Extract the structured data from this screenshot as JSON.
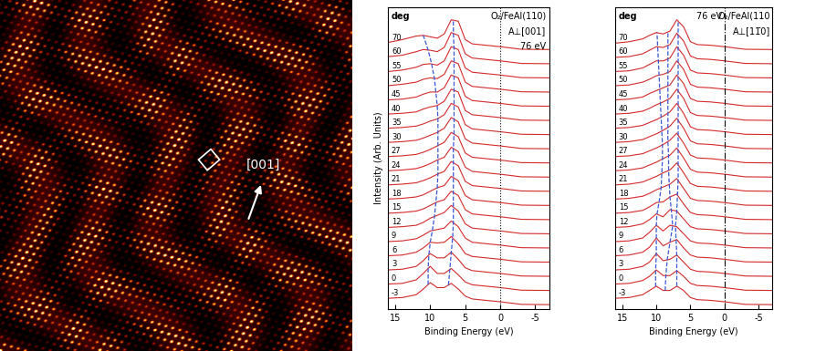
{
  "image": {
    "label": "[001]"
  },
  "chart_data": [
    {
      "type": "line",
      "xlabel": "Binding Energy (eV)",
      "ylabel": "Intensity (Arb. Units)",
      "annotations": [
        "O₂/FeAl(110)",
        "A⊥[001]",
        "76 eV"
      ],
      "series_header": "deg",
      "xlim": [
        16,
        -7
      ],
      "xticks": [
        15,
        10,
        5,
        0,
        -5
      ],
      "ylim": [
        -0.3,
        21
      ],
      "tick_labels": "x",
      "color": "#d42a2a",
      "reference_line": {
        "x": 0,
        "color": "#000000",
        "line_style": "dotted"
      },
      "x": [
        16,
        14,
        12,
        11,
        10,
        9,
        8,
        7,
        6,
        5,
        4,
        2,
        0,
        -3,
        -7
      ],
      "series": [
        {
          "name": "-3",
          "offset": 0,
          "values": [
            0.45,
            0.5,
            0.7,
            1.1,
            1.55,
            1.2,
            1.2,
            1.5,
            1.1,
            0.6,
            0.4,
            0.3,
            0.2,
            0.02,
            0
          ]
        },
        {
          "name": "0",
          "offset": 1,
          "values": [
            0.45,
            0.5,
            0.75,
            1.2,
            1.7,
            1.2,
            1.2,
            1.55,
            1.1,
            0.6,
            0.4,
            0.3,
            0.2,
            0.02,
            0
          ]
        },
        {
          "name": "3",
          "offset": 2,
          "values": [
            0.45,
            0.5,
            0.7,
            1.1,
            1.6,
            1.3,
            1.3,
            1.7,
            1.2,
            0.6,
            0.4,
            0.3,
            0.2,
            0.02,
            0
          ]
        },
        {
          "name": "6",
          "offset": 3,
          "values": [
            0.45,
            0.5,
            0.7,
            1.0,
            1.4,
            1.35,
            1.4,
            1.8,
            1.3,
            0.6,
            0.4,
            0.3,
            0.2,
            0.02,
            0
          ]
        },
        {
          "name": "9",
          "offset": 4,
          "values": [
            0.45,
            0.5,
            0.65,
            0.9,
            1.2,
            1.3,
            1.4,
            1.9,
            1.5,
            0.7,
            0.4,
            0.3,
            0.2,
            0.02,
            0
          ]
        },
        {
          "name": "12",
          "offset": 5,
          "values": [
            0.45,
            0.5,
            0.6,
            0.8,
            1.1,
            1.3,
            1.5,
            2.0,
            1.6,
            0.7,
            0.4,
            0.3,
            0.2,
            0.02,
            0
          ]
        },
        {
          "name": "15",
          "offset": 6,
          "values": [
            0.45,
            0.5,
            0.6,
            0.75,
            1.0,
            1.25,
            1.4,
            2.0,
            1.7,
            0.7,
            0.4,
            0.3,
            0.2,
            0.02,
            0
          ]
        },
        {
          "name": "18",
          "offset": 7,
          "values": [
            0.45,
            0.5,
            0.6,
            0.75,
            1.0,
            1.25,
            1.4,
            2.05,
            1.75,
            0.7,
            0.4,
            0.3,
            0.2,
            0.02,
            0
          ]
        },
        {
          "name": "21",
          "offset": 8,
          "values": [
            0.45,
            0.5,
            0.6,
            0.75,
            0.95,
            1.2,
            1.4,
            2.1,
            1.8,
            0.7,
            0.4,
            0.3,
            0.2,
            0.02,
            0
          ]
        },
        {
          "name": "24",
          "offset": 9,
          "values": [
            0.45,
            0.5,
            0.6,
            0.75,
            0.95,
            1.2,
            1.4,
            2.1,
            1.8,
            0.7,
            0.4,
            0.3,
            0.2,
            0.02,
            0
          ]
        },
        {
          "name": "27",
          "offset": 10,
          "values": [
            0.45,
            0.5,
            0.6,
            0.75,
            0.95,
            1.2,
            1.45,
            2.15,
            1.85,
            0.7,
            0.4,
            0.3,
            0.2,
            0.02,
            0
          ]
        },
        {
          "name": "30",
          "offset": 11,
          "values": [
            0.45,
            0.5,
            0.6,
            0.75,
            0.95,
            1.15,
            1.45,
            2.2,
            1.9,
            0.7,
            0.4,
            0.3,
            0.2,
            0.02,
            0
          ]
        },
        {
          "name": "35",
          "offset": 12,
          "values": [
            0.45,
            0.5,
            0.6,
            0.75,
            0.95,
            1.1,
            1.4,
            2.2,
            1.95,
            0.7,
            0.4,
            0.3,
            0.2,
            0.02,
            0
          ]
        },
        {
          "name": "40",
          "offset": 13,
          "values": [
            0.45,
            0.5,
            0.6,
            0.8,
            0.95,
            1.05,
            1.35,
            2.2,
            2.0,
            0.7,
            0.4,
            0.3,
            0.2,
            0.02,
            0
          ]
        },
        {
          "name": "45",
          "offset": 14,
          "values": [
            0.45,
            0.5,
            0.65,
            0.85,
            1.0,
            1.0,
            1.3,
            2.2,
            2.0,
            0.7,
            0.4,
            0.3,
            0.2,
            0.02,
            0
          ]
        },
        {
          "name": "50",
          "offset": 15,
          "values": [
            0.45,
            0.55,
            0.7,
            0.9,
            1.0,
            0.95,
            1.25,
            2.2,
            2.0,
            0.7,
            0.4,
            0.3,
            0.2,
            0.02,
            0
          ]
        },
        {
          "name": "55",
          "offset": 16,
          "values": [
            0.45,
            0.55,
            0.75,
            0.95,
            1.0,
            0.9,
            1.2,
            2.2,
            2.0,
            0.7,
            0.4,
            0.3,
            0.2,
            0.02,
            0
          ]
        },
        {
          "name": "60",
          "offset": 17,
          "values": [
            0.5,
            0.6,
            0.85,
            1.0,
            0.95,
            0.85,
            1.15,
            2.2,
            2.0,
            0.7,
            0.4,
            0.3,
            0.2,
            0.02,
            0
          ]
        },
        {
          "name": "70",
          "offset": 18,
          "values": [
            0.5,
            0.7,
            0.95,
            1.0,
            0.9,
            0.8,
            1.1,
            2.1,
            2.0,
            0.7,
            0.4,
            0.3,
            0.2,
            0.02,
            0
          ]
        }
      ],
      "peak_traces": [
        {
          "color": "#3a56d4",
          "line_style": "dashed",
          "x": [
            10.3,
            10.3,
            10.2,
            10.0,
            9.7,
            9.4,
            9.2,
            9.0,
            8.9,
            8.9,
            8.9,
            8.9,
            8.9,
            9.0,
            9.2,
            9.4,
            9.8,
            10.3,
            11.0
          ]
        },
        {
          "color": "#3a56d4",
          "line_style": "dashed",
          "x": [
            7.4,
            7.2,
            7.0,
            6.8,
            6.7,
            6.7,
            6.7,
            6.7,
            6.7,
            6.7,
            6.6,
            6.6,
            6.6,
            6.6,
            6.6,
            6.6,
            6.6,
            6.7,
            6.7
          ]
        }
      ]
    },
    {
      "type": "line",
      "xlabel": "Binding Energy (eV)",
      "annotations": [
        "76 eV",
        "O₂/FeAl(110",
        "A⊥[11̅0]"
      ],
      "series_header": "deg",
      "xlim": [
        16,
        -7
      ],
      "xticks": [
        15,
        10,
        5,
        0,
        -5
      ],
      "ylim": [
        -0.3,
        21
      ],
      "tick_labels": "x",
      "color": "#d42a2a",
      "reference_line": {
        "x": 0,
        "color": "#000000",
        "line_style": "dashdot"
      },
      "x": [
        16,
        14,
        12,
        11,
        10,
        9,
        8,
        7,
        6,
        5,
        4,
        2,
        0,
        -3,
        -7
      ],
      "series": [
        {
          "name": "-3",
          "offset": 0,
          "values": [
            0.45,
            0.5,
            0.7,
            1.0,
            1.3,
            1.0,
            1.0,
            1.3,
            1.0,
            0.5,
            0.35,
            0.3,
            0.2,
            0.02,
            0
          ]
        },
        {
          "name": "0",
          "offset": 1,
          "values": [
            0.45,
            0.5,
            0.7,
            1.0,
            1.45,
            1.05,
            1.05,
            1.4,
            1.0,
            0.5,
            0.35,
            0.3,
            0.2,
            0.02,
            0
          ]
        },
        {
          "name": "3",
          "offset": 2,
          "values": [
            0.45,
            0.5,
            0.7,
            1.0,
            1.6,
            1.1,
            1.2,
            1.5,
            1.0,
            0.5,
            0.35,
            0.3,
            0.2,
            0.02,
            0
          ]
        },
        {
          "name": "6",
          "offset": 3,
          "values": [
            0.45,
            0.5,
            0.7,
            1.05,
            1.7,
            1.15,
            1.4,
            1.6,
            1.0,
            0.5,
            0.35,
            0.3,
            0.2,
            0.02,
            0
          ]
        },
        {
          "name": "9",
          "offset": 4,
          "values": [
            0.45,
            0.5,
            0.7,
            1.1,
            1.6,
            1.2,
            1.6,
            1.5,
            1.0,
            0.5,
            0.35,
            0.3,
            0.2,
            0.02,
            0
          ]
        },
        {
          "name": "12",
          "offset": 5,
          "values": [
            0.45,
            0.5,
            0.7,
            1.0,
            1.4,
            1.2,
            1.7,
            1.6,
            1.05,
            0.5,
            0.35,
            0.3,
            0.2,
            0.02,
            0
          ]
        },
        {
          "name": "15",
          "offset": 6,
          "values": [
            0.45,
            0.5,
            0.65,
            0.9,
            1.2,
            1.25,
            1.6,
            1.8,
            1.1,
            0.5,
            0.35,
            0.3,
            0.2,
            0.02,
            0
          ]
        },
        {
          "name": "18",
          "offset": 7,
          "values": [
            0.45,
            0.5,
            0.65,
            0.85,
            1.1,
            1.3,
            1.5,
            1.9,
            1.2,
            0.5,
            0.35,
            0.3,
            0.2,
            0.02,
            0
          ]
        },
        {
          "name": "21",
          "offset": 8,
          "values": [
            0.45,
            0.5,
            0.65,
            0.85,
            1.05,
            1.3,
            1.5,
            2.0,
            1.3,
            0.55,
            0.35,
            0.3,
            0.2,
            0.02,
            0
          ]
        },
        {
          "name": "24",
          "offset": 9,
          "values": [
            0.45,
            0.5,
            0.65,
            0.85,
            1.05,
            1.3,
            1.55,
            2.05,
            1.35,
            0.55,
            0.35,
            0.3,
            0.2,
            0.02,
            0
          ]
        },
        {
          "name": "27",
          "offset": 10,
          "values": [
            0.45,
            0.5,
            0.65,
            0.85,
            1.05,
            1.3,
            1.6,
            2.1,
            1.4,
            0.55,
            0.35,
            0.3,
            0.2,
            0.02,
            0
          ]
        },
        {
          "name": "30",
          "offset": 11,
          "values": [
            0.45,
            0.5,
            0.65,
            0.85,
            1.05,
            1.3,
            1.6,
            2.15,
            1.45,
            0.55,
            0.35,
            0.3,
            0.2,
            0.02,
            0
          ]
        },
        {
          "name": "35",
          "offset": 12,
          "values": [
            0.45,
            0.5,
            0.65,
            0.85,
            1.05,
            1.3,
            1.6,
            2.2,
            1.5,
            0.55,
            0.35,
            0.3,
            0.2,
            0.02,
            0
          ]
        },
        {
          "name": "40",
          "offset": 13,
          "values": [
            0.45,
            0.5,
            0.65,
            0.85,
            1.1,
            1.3,
            1.55,
            2.2,
            1.55,
            0.55,
            0.35,
            0.3,
            0.2,
            0.02,
            0
          ]
        },
        {
          "name": "45",
          "offset": 14,
          "values": [
            0.45,
            0.5,
            0.65,
            0.9,
            1.1,
            1.3,
            1.5,
            2.2,
            1.6,
            0.55,
            0.35,
            0.3,
            0.2,
            0.02,
            0
          ]
        },
        {
          "name": "50",
          "offset": 15,
          "values": [
            0.45,
            0.5,
            0.7,
            0.9,
            1.15,
            1.25,
            1.45,
            2.2,
            1.6,
            0.55,
            0.35,
            0.3,
            0.2,
            0.02,
            0
          ]
        },
        {
          "name": "55",
          "offset": 16,
          "values": [
            0.45,
            0.5,
            0.7,
            0.95,
            1.2,
            1.2,
            1.4,
            2.2,
            1.6,
            0.55,
            0.35,
            0.3,
            0.2,
            0.02,
            0
          ]
        },
        {
          "name": "60",
          "offset": 17,
          "values": [
            0.45,
            0.5,
            0.7,
            0.95,
            1.2,
            1.15,
            1.35,
            2.15,
            1.6,
            0.55,
            0.35,
            0.3,
            0.2,
            0.02,
            0
          ]
        },
        {
          "name": "70",
          "offset": 18,
          "values": [
            0.45,
            0.55,
            0.75,
            1.0,
            1.2,
            1.1,
            1.3,
            2.1,
            1.6,
            0.55,
            0.35,
            0.3,
            0.2,
            0.02,
            0
          ]
        }
      ],
      "peak_traces": [
        {
          "color": "#3a56d4",
          "line_style": "dashed",
          "x": [
            10.1,
            10.1,
            10.0,
            10.0,
            10.0,
            9.9,
            9.6,
            9.3,
            9.2,
            9.1,
            9.1,
            9.2,
            9.3,
            9.4,
            9.5,
            9.6,
            9.7,
            9.8,
            9.9
          ]
        },
        {
          "color": "#3a56d4",
          "line_style": "dashed",
          "x": [
            8.7,
            8.6,
            8.4,
            8.0,
            7.6,
            7.8,
            8.0,
            8.1,
            8.2,
            8.2,
            8.3,
            8.3,
            8.3,
            8.3,
            8.3,
            8.3,
            8.3,
            8.3,
            8.3
          ]
        },
        {
          "color": "#3a56d4",
          "line_style": "dashed",
          "x": [
            7.0,
            7.0,
            7.0,
            7.1,
            7.2,
            7.0,
            6.9,
            6.8,
            6.8,
            6.8,
            6.8,
            6.8,
            6.8,
            6.8,
            6.8,
            6.8,
            6.8,
            6.8,
            6.8
          ]
        }
      ]
    }
  ]
}
